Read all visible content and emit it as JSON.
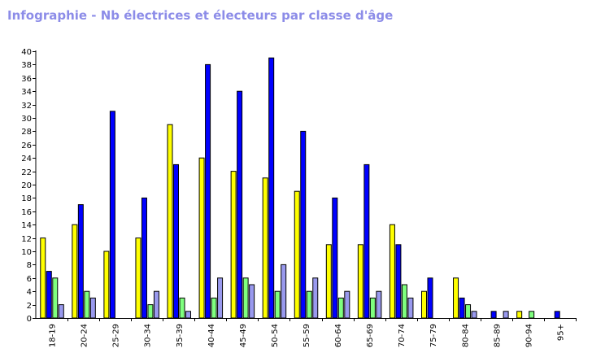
{
  "title": "Infographie - Nb électrices et électeurs par classe d'âge",
  "chart_data": {
    "type": "bar",
    "title": "Infographie - Nb électrices et électeurs par classe d'âge",
    "categories": [
      "18-19",
      "20-24",
      "25-29",
      "30-34",
      "35-39",
      "40-44",
      "45-49",
      "50-54",
      "55-59",
      "60-64",
      "65-69",
      "70-74",
      "75-79",
      "80-84",
      "85-89",
      "90-94",
      "95+"
    ],
    "series": [
      {
        "color": "#ffff00",
        "values": [
          12,
          14,
          10,
          12,
          29,
          24,
          22,
          21,
          19,
          11,
          11,
          14,
          4,
          6,
          0,
          1,
          0
        ]
      },
      {
        "color": "#0000ff",
        "values": [
          7,
          17,
          31,
          18,
          23,
          38,
          34,
          39,
          28,
          18,
          23,
          11,
          6,
          3,
          1,
          0,
          1
        ]
      },
      {
        "color": "#7fff7f",
        "values": [
          6,
          4,
          0,
          2,
          3,
          3,
          6,
          4,
          4,
          3,
          3,
          5,
          0,
          2,
          0,
          1,
          0
        ]
      },
      {
        "color": "#9999ee",
        "values": [
          2,
          3,
          0,
          4,
          1,
          6,
          5,
          8,
          6,
          4,
          4,
          3,
          0,
          1,
          1,
          0,
          0
        ]
      }
    ],
    "ylim": [
      0,
      40
    ],
    "ytick_step": 2,
    "grid": false
  }
}
